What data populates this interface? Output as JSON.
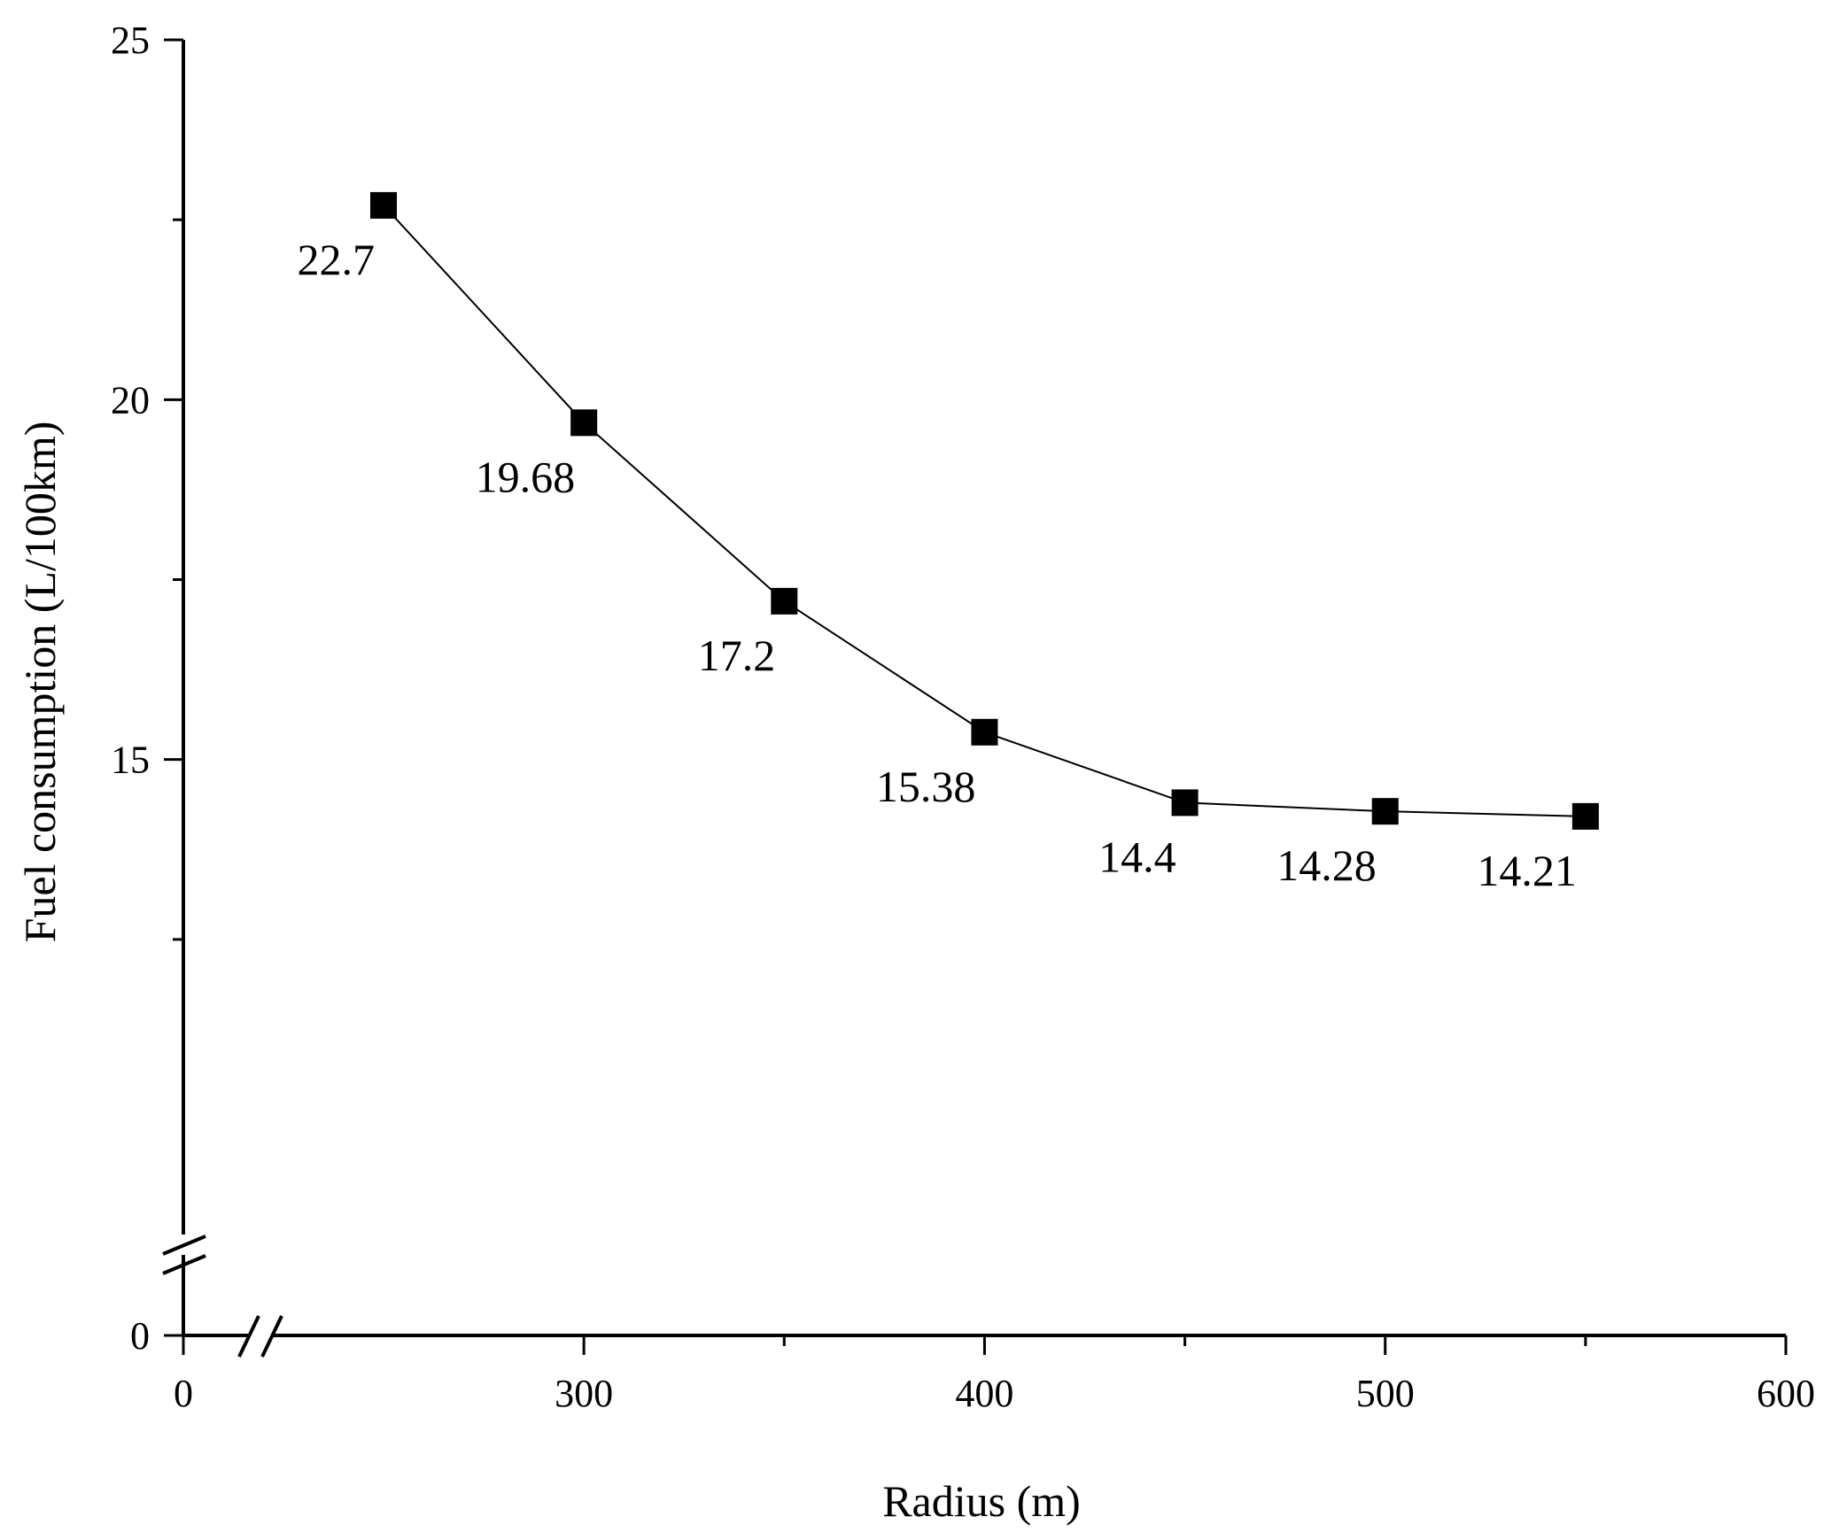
{
  "chart_data": {
    "type": "line",
    "title": "",
    "xlabel": "Radius (m)",
    "ylabel": "Fuel consumption (L/100km)",
    "x_axis": {
      "broken": true,
      "break_segment": {
        "display": [
          0,
          250
        ]
      },
      "main_range": [
        250,
        600
      ],
      "ticks": [
        {
          "value": 0,
          "label": "0"
        },
        {
          "value": 300,
          "label": "300"
        },
        {
          "value": 400,
          "label": "400"
        },
        {
          "value": 500,
          "label": "500"
        },
        {
          "value": 600,
          "label": "600"
        }
      ],
      "minor_ticks": [
        350,
        450,
        550
      ]
    },
    "y_axis": {
      "broken": true,
      "break_segment": {
        "display": [
          0,
          10
        ]
      },
      "main_range": [
        10,
        25
      ],
      "ticks": [
        {
          "value": 0,
          "label": "0"
        },
        {
          "value": 15,
          "label": "15"
        },
        {
          "value": 20,
          "label": "20"
        },
        {
          "value": 25,
          "label": "25"
        }
      ],
      "minor_ticks": [
        12.5,
        17.5,
        22.5
      ]
    },
    "grid": false,
    "legend": "none",
    "series": [
      {
        "color": "#000000",
        "marker": "square",
        "x": [
          250,
          300,
          350,
          400,
          450,
          500,
          550
        ],
        "y": [
          22.7,
          19.68,
          17.2,
          15.38,
          14.4,
          14.28,
          14.21
        ],
        "labels": [
          "22.7",
          "19.68",
          "17.2",
          "15.38",
          "14.4",
          "14.28",
          "14.21"
        ]
      }
    ]
  }
}
